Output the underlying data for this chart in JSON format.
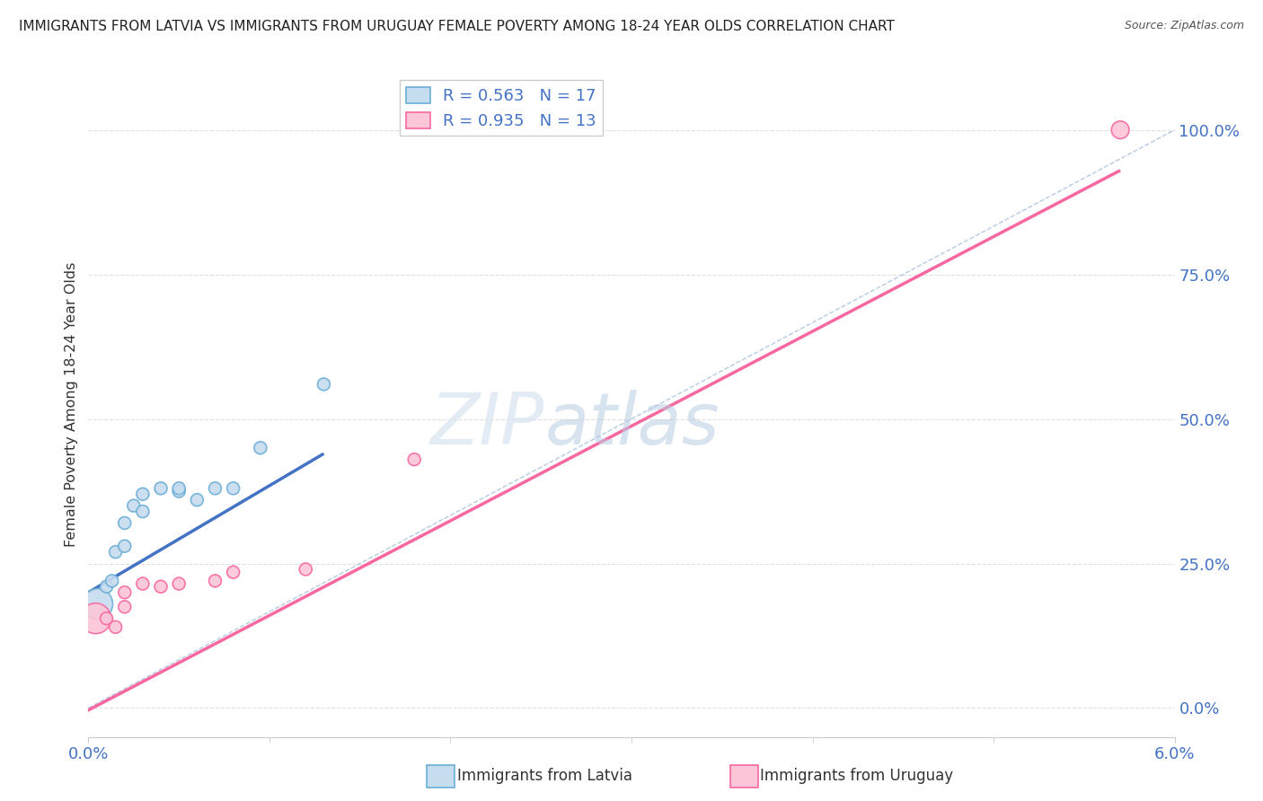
{
  "title": "IMMIGRANTS FROM LATVIA VS IMMIGRANTS FROM URUGUAY FEMALE POVERTY AMONG 18-24 YEAR OLDS CORRELATION CHART",
  "source": "Source: ZipAtlas.com",
  "ylabel": "Female Poverty Among 18-24 Year Olds",
  "legend_labels": [
    "Immigrants from Latvia",
    "Immigrants from Uruguay"
  ],
  "latvia_R": "0.563",
  "latvia_N": "17",
  "uruguay_R": "0.935",
  "uruguay_N": "13",
  "xlim": [
    0.0,
    0.06
  ],
  "ylim": [
    -0.05,
    1.1
  ],
  "right_yticks": [
    0.0,
    0.25,
    0.5,
    0.75,
    1.0
  ],
  "right_yticklabels": [
    "0.0%",
    "25.0%",
    "50.0%",
    "75.0%",
    "100.0%"
  ],
  "latvia_color": "#6baed6",
  "uruguay_color": "#f768a1",
  "latvia_color_fill": "#c6dcef",
  "uruguay_color_fill": "#fcc5d8",
  "watermark_zip": "ZIP",
  "watermark_atlas": "atlas",
  "latvia_scatter_x": [
    0.0005,
    0.001,
    0.0013,
    0.0015,
    0.002,
    0.002,
    0.0025,
    0.003,
    0.003,
    0.004,
    0.005,
    0.005,
    0.006,
    0.007,
    0.008,
    0.0095,
    0.013
  ],
  "latvia_scatter_y": [
    0.18,
    0.21,
    0.22,
    0.27,
    0.32,
    0.28,
    0.35,
    0.34,
    0.37,
    0.38,
    0.375,
    0.38,
    0.36,
    0.38,
    0.38,
    0.45,
    0.56
  ],
  "latvia_scatter_sizes": [
    600,
    100,
    100,
    100,
    100,
    100,
    100,
    100,
    100,
    100,
    100,
    100,
    100,
    100,
    100,
    100,
    100
  ],
  "uruguay_scatter_x": [
    0.0004,
    0.001,
    0.0015,
    0.002,
    0.002,
    0.003,
    0.004,
    0.005,
    0.007,
    0.008,
    0.012,
    0.018,
    0.057
  ],
  "uruguay_scatter_y": [
    0.155,
    0.155,
    0.14,
    0.175,
    0.2,
    0.215,
    0.21,
    0.215,
    0.22,
    0.235,
    0.24,
    0.43,
    1.0
  ],
  "uruguay_scatter_sizes": [
    600,
    100,
    100,
    100,
    100,
    100,
    100,
    100,
    100,
    100,
    100,
    100,
    200
  ],
  "latvia_line_x": [
    0.0,
    0.013
  ],
  "latvia_line_y": [
    0.2,
    0.44
  ],
  "uruguay_line_x": [
    -0.001,
    0.057
  ],
  "uruguay_line_y": [
    -0.02,
    0.93
  ],
  "ref_line_x": [
    0.0,
    0.06
  ],
  "ref_line_y": [
    0.0,
    1.0
  ],
  "bg_color": "#ffffff",
  "grid_color": "#e0e0e0",
  "title_color": "#222222",
  "tick_color": "#4472c4",
  "axis_label_color": "#333333"
}
